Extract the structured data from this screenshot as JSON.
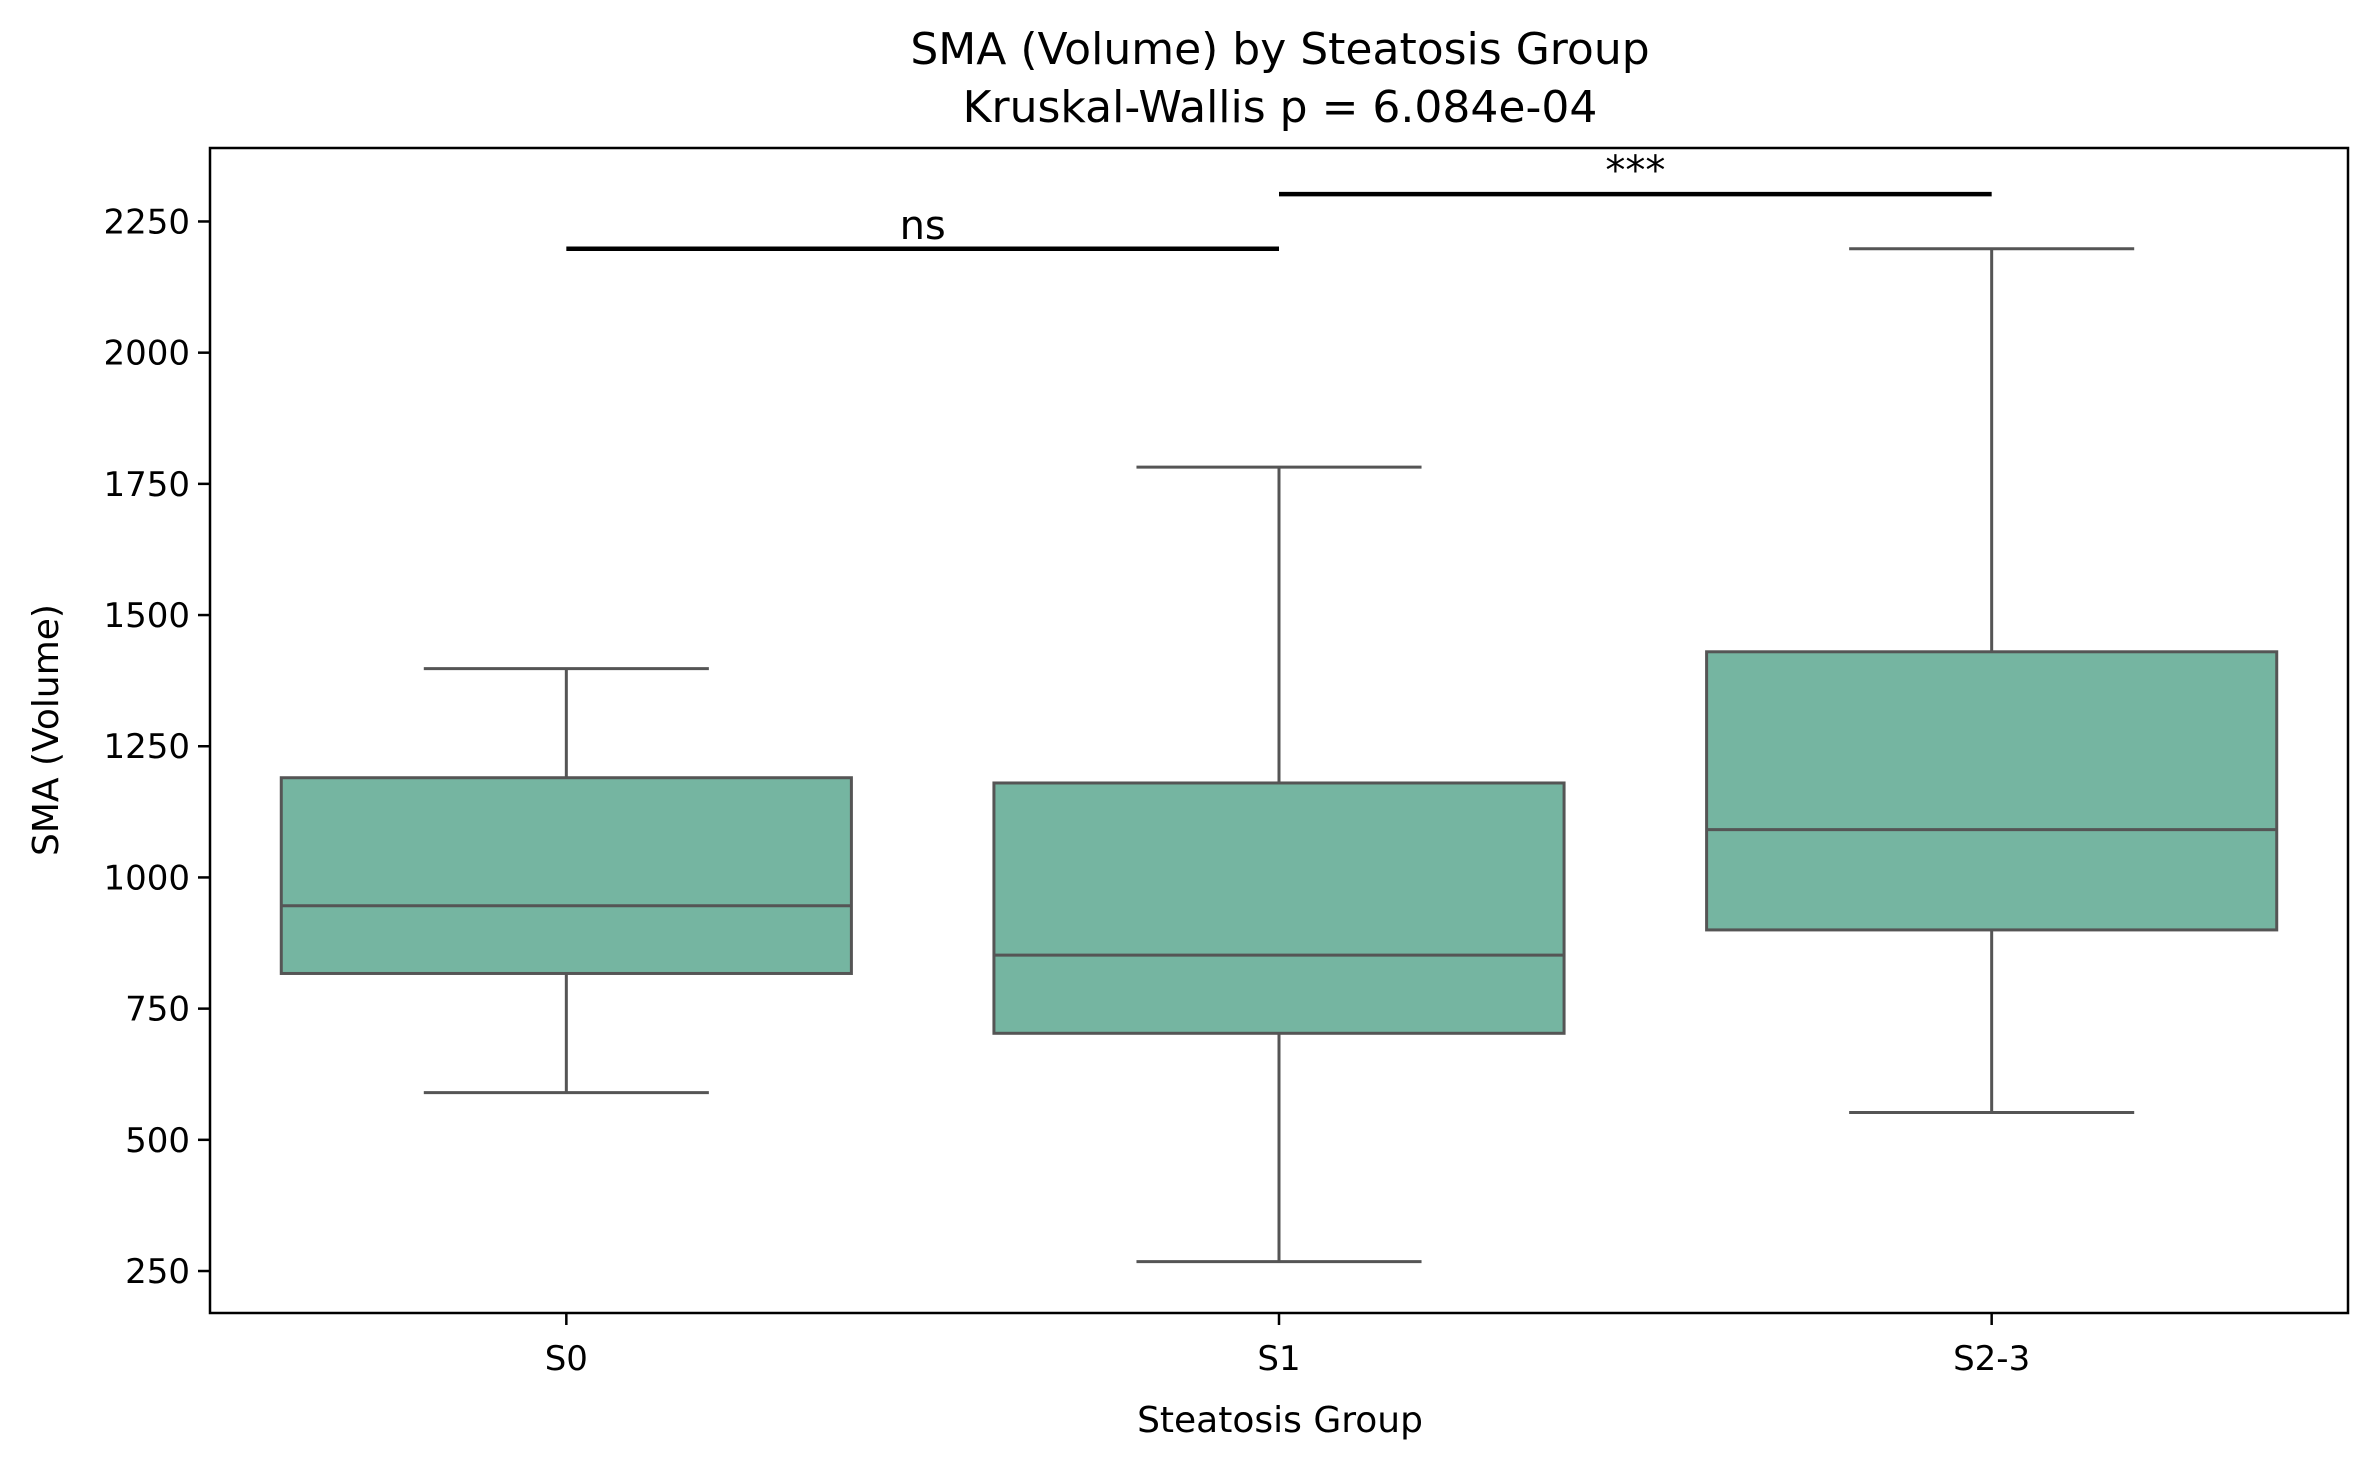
{
  "chart_data": {
    "type": "boxplot",
    "title": "SMA (Volume) by Steatosis Group",
    "subtitle": "Kruskal-Wallis p = 6.084e-04",
    "xlabel": "Steatosis Group",
    "ylabel": "SMA (Volume)",
    "categories": [
      "S0",
      "S1",
      "S2-3"
    ],
    "boxes": [
      {
        "name": "S0",
        "whisker_low": 590,
        "q1": 817,
        "median": 946,
        "q3": 1190,
        "whisker_high": 1398
      },
      {
        "name": "S1",
        "whisker_low": 268,
        "q1": 703,
        "median": 852,
        "q3": 1180,
        "whisker_high": 1782
      },
      {
        "name": "S2-3",
        "whisker_low": 552,
        "q1": 900,
        "median": 1091,
        "q3": 1430,
        "whisker_high": 2198
      }
    ],
    "ylim": [
      170,
      2390
    ],
    "yticks": [
      250,
      500,
      750,
      1000,
      1250,
      1500,
      1750,
      2000,
      2250
    ],
    "box_color": "#75b5a1",
    "line_color": "#555555",
    "comparisons": [
      {
        "from": "S0",
        "to": "S1",
        "y": 2198,
        "label": "ns"
      },
      {
        "from": "S1",
        "to": "S2-3",
        "y": 2302,
        "label": "***"
      }
    ],
    "grid": false
  }
}
